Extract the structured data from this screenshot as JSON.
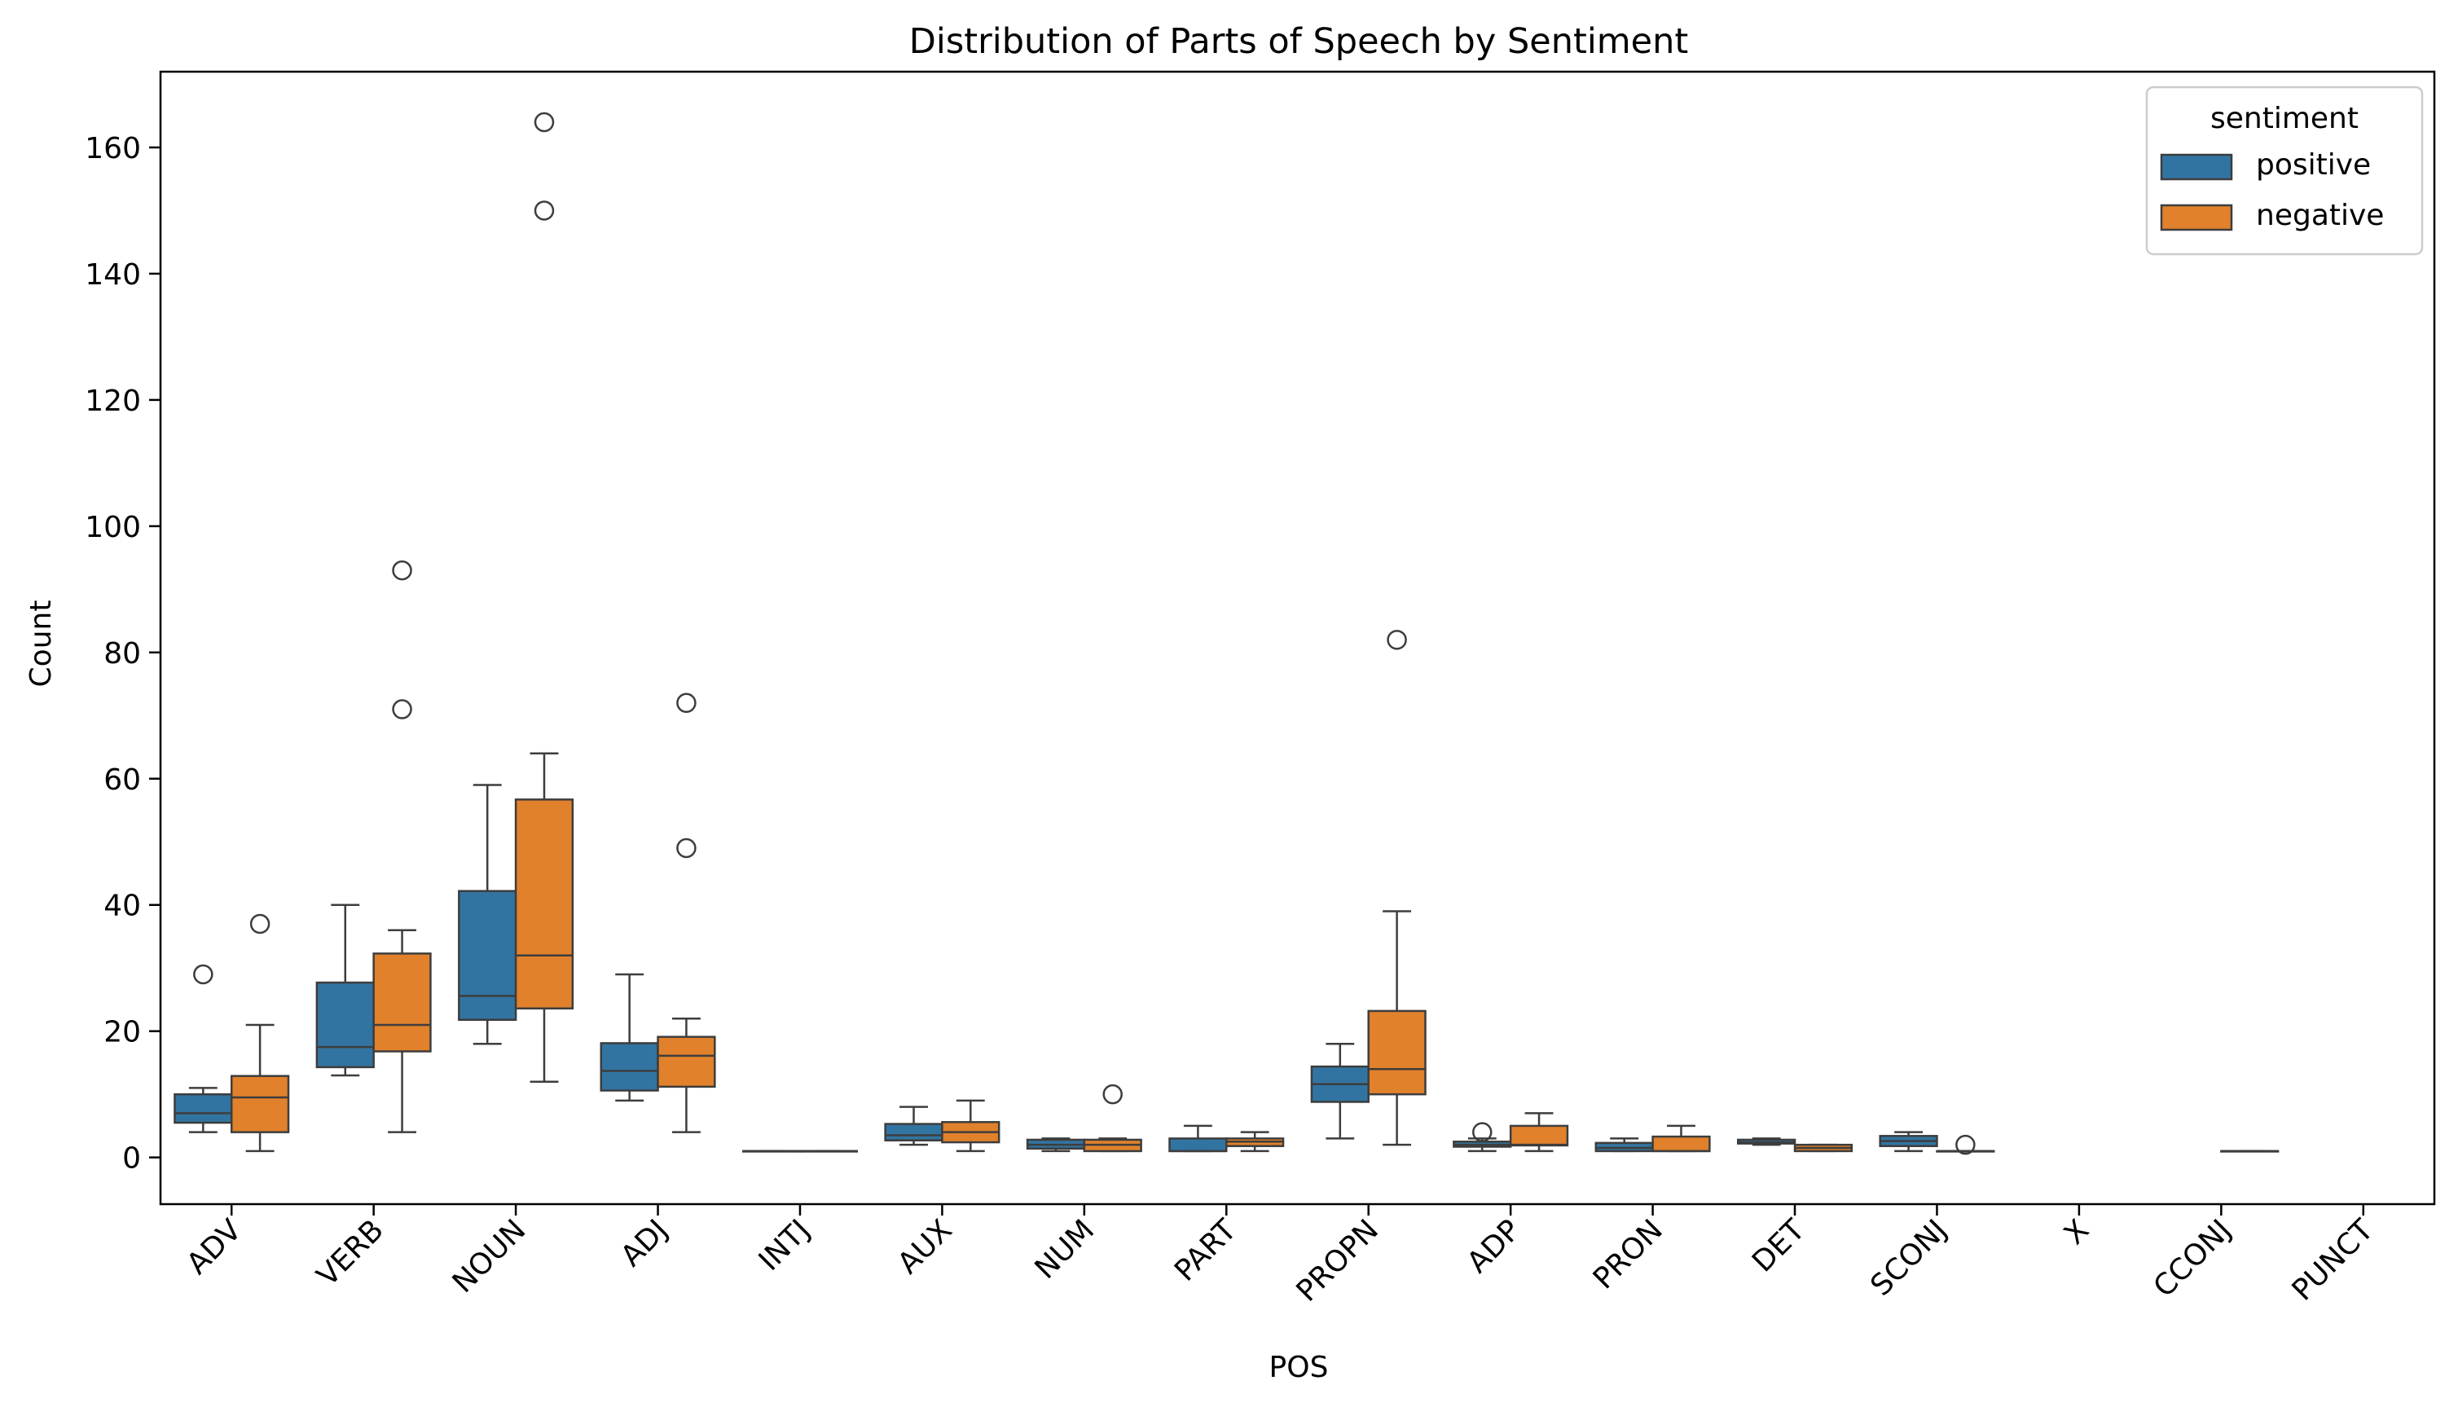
{
  "chart_data": {
    "type": "box",
    "title": "Distribution of Parts of Speech by Sentiment",
    "xlabel": "POS",
    "ylabel": "Count",
    "ylim": [
      -7.4,
      172
    ],
    "yticks": [
      0,
      20,
      40,
      60,
      80,
      100,
      120,
      140,
      160
    ],
    "grid": false,
    "legend": {
      "title": "sentiment",
      "position": "top-right"
    },
    "categories": [
      "ADV",
      "VERB",
      "NOUN",
      "ADJ",
      "INTJ",
      "AUX",
      "NUM",
      "PART",
      "PROPN",
      "ADP",
      "PRON",
      "DET",
      "SCONJ",
      "X",
      "CCONJ",
      "PUNCT"
    ],
    "series": [
      {
        "name": "positive",
        "color": "#3274a1",
        "boxes": [
          {
            "category": "ADV",
            "whisker_low": 4,
            "q1": 5.5,
            "median": 7,
            "q3": 10,
            "whisker_high": 11,
            "outliers": [
              29
            ]
          },
          {
            "category": "VERB",
            "whisker_low": 13,
            "q1": 14.3,
            "median": 17.5,
            "q3": 27.7,
            "whisker_high": 40,
            "outliers": []
          },
          {
            "category": "NOUN",
            "whisker_low": 18,
            "q1": 21.8,
            "median": 25.6,
            "q3": 42.2,
            "whisker_high": 59,
            "outliers": []
          },
          {
            "category": "ADJ",
            "whisker_low": 9,
            "q1": 10.6,
            "median": 13.7,
            "q3": 18.1,
            "whisker_high": 29,
            "outliers": []
          },
          {
            "category": "INTJ",
            "whisker_low": 1,
            "q1": 1,
            "median": 1,
            "q3": 1,
            "whisker_high": 1,
            "outliers": []
          },
          {
            "category": "AUX",
            "whisker_low": 2,
            "q1": 2.7,
            "median": 3.5,
            "q3": 5.3,
            "whisker_high": 8,
            "outliers": []
          },
          {
            "category": "NUM",
            "whisker_low": 1,
            "q1": 1.4,
            "median": 2,
            "q3": 2.8,
            "whisker_high": 3,
            "outliers": []
          },
          {
            "category": "PART",
            "whisker_low": 1,
            "q1": 1,
            "median": 1,
            "q3": 3,
            "whisker_high": 5,
            "outliers": []
          },
          {
            "category": "PROPN",
            "whisker_low": 3,
            "q1": 8.8,
            "median": 11.6,
            "q3": 14.4,
            "whisker_high": 18,
            "outliers": []
          },
          {
            "category": "ADP",
            "whisker_low": 1,
            "q1": 1.7,
            "median": 2,
            "q3": 2.5,
            "whisker_high": 3,
            "outliers": [
              4
            ]
          },
          {
            "category": "PRON",
            "whisker_low": 1,
            "q1": 1,
            "median": 1.5,
            "q3": 2.3,
            "whisker_high": 3,
            "outliers": []
          },
          {
            "category": "DET",
            "whisker_low": 2,
            "q1": 2.2,
            "median": 2.4,
            "q3": 2.8,
            "whisker_high": 3,
            "outliers": []
          },
          {
            "category": "SCONJ",
            "whisker_low": 1,
            "q1": 1.8,
            "median": 2.6,
            "q3": 3.4,
            "whisker_high": 4,
            "outliers": []
          },
          {
            "category": "X"
          },
          {
            "category": "CCONJ"
          },
          {
            "category": "PUNCT"
          }
        ]
      },
      {
        "name": "negative",
        "color": "#e1812c",
        "boxes": [
          {
            "category": "ADV",
            "whisker_low": 1,
            "q1": 4,
            "median": 9.5,
            "q3": 12.9,
            "whisker_high": 21,
            "outliers": [
              37
            ]
          },
          {
            "category": "VERB",
            "whisker_low": 4,
            "q1": 16.8,
            "median": 21,
            "q3": 32.3,
            "whisker_high": 36,
            "outliers": [
              71,
              93
            ]
          },
          {
            "category": "NOUN",
            "whisker_low": 12,
            "q1": 23.6,
            "median": 32,
            "q3": 56.7,
            "whisker_high": 64,
            "outliers": [
              150,
              164
            ]
          },
          {
            "category": "ADJ",
            "whisker_low": 4,
            "q1": 11.2,
            "median": 16.1,
            "q3": 19.1,
            "whisker_high": 22,
            "outliers": [
              49,
              72
            ]
          },
          {
            "category": "INTJ",
            "whisker_low": 1,
            "q1": 1,
            "median": 1,
            "q3": 1,
            "whisker_high": 1,
            "outliers": []
          },
          {
            "category": "AUX",
            "whisker_low": 1,
            "q1": 2.4,
            "median": 4,
            "q3": 5.6,
            "whisker_high": 9,
            "outliers": []
          },
          {
            "category": "NUM",
            "whisker_low": 1,
            "q1": 1,
            "median": 2,
            "q3": 2.8,
            "whisker_high": 3,
            "outliers": [
              10
            ]
          },
          {
            "category": "PART",
            "whisker_low": 1,
            "q1": 1.8,
            "median": 2.5,
            "q3": 3,
            "whisker_high": 4,
            "outliers": []
          },
          {
            "category": "PROPN",
            "whisker_low": 2,
            "q1": 10,
            "median": 14,
            "q3": 23.2,
            "whisker_high": 39,
            "outliers": [
              82
            ]
          },
          {
            "category": "ADP",
            "whisker_low": 1,
            "q1": 1.9,
            "median": 2,
            "q3": 5,
            "whisker_high": 7,
            "outliers": []
          },
          {
            "category": "PRON",
            "whisker_low": 1,
            "q1": 1,
            "median": 1,
            "q3": 3.3,
            "whisker_high": 5,
            "outliers": []
          },
          {
            "category": "DET",
            "whisker_low": 1,
            "q1": 1,
            "median": 1.5,
            "q3": 2,
            "whisker_high": 2,
            "outliers": []
          },
          {
            "category": "SCONJ",
            "whisker_low": 1,
            "q1": 1,
            "median": 1,
            "q3": 1,
            "whisker_high": 1,
            "outliers": [
              2
            ]
          },
          {
            "category": "X"
          },
          {
            "category": "CCONJ",
            "whisker_low": 1,
            "q1": 1,
            "median": 1,
            "q3": 1,
            "whisker_high": 1,
            "outliers": []
          },
          {
            "category": "PUNCT"
          }
        ]
      }
    ]
  }
}
